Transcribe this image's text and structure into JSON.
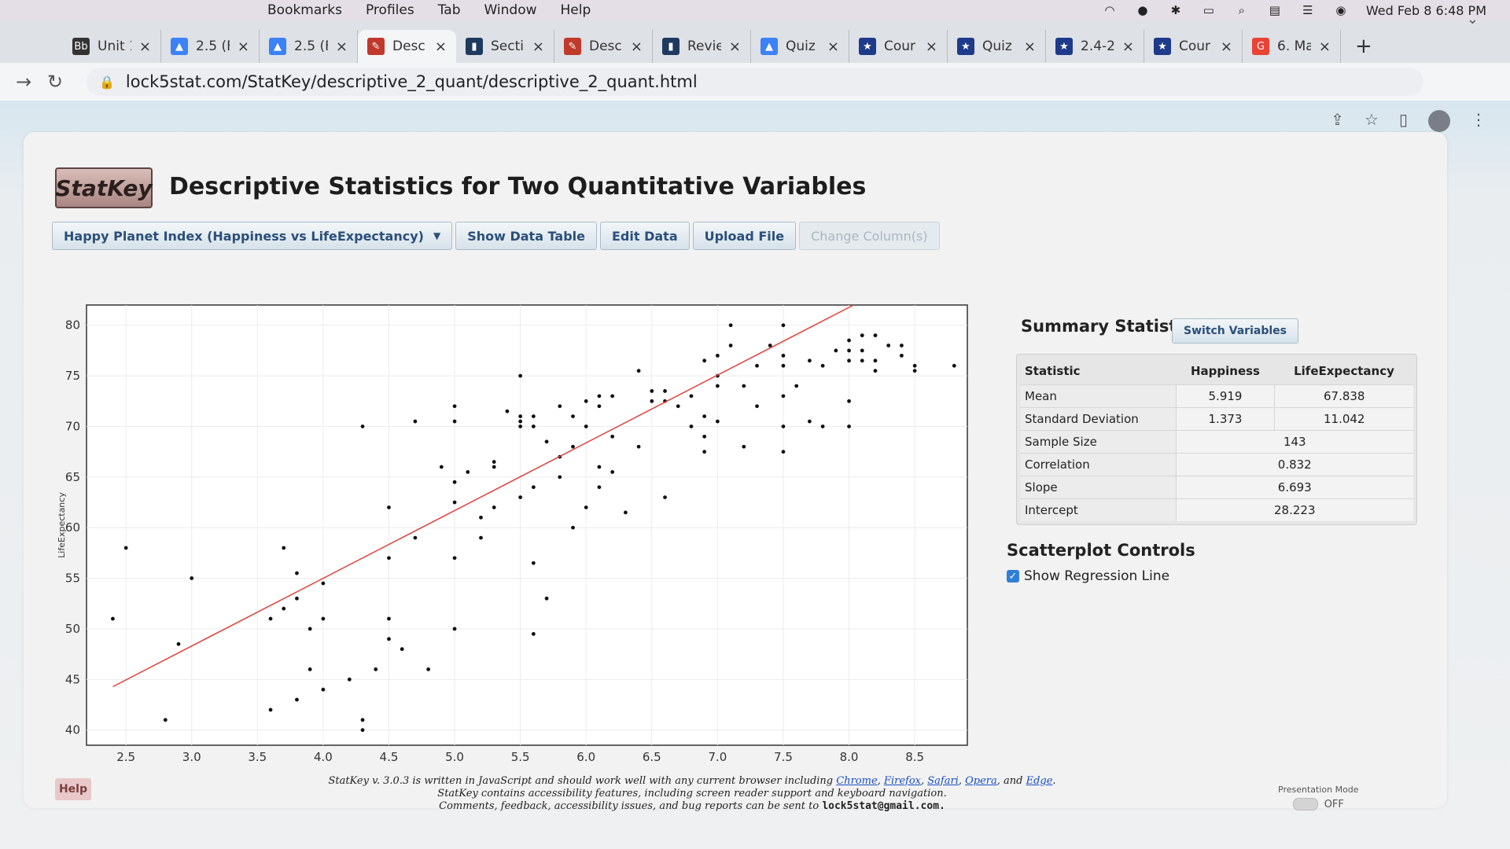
{
  "menubar": {
    "items": [
      "Bookmarks",
      "Profiles",
      "Tab",
      "Window",
      "Help"
    ],
    "clock": "Wed Feb 8  6:48 PM"
  },
  "tabs": [
    {
      "label": "Unit 1",
      "icon": "book-icon",
      "color": "#333333"
    },
    {
      "label": "2.5 (F",
      "icon": "drive-icon",
      "color": "#3b82f6"
    },
    {
      "label": "2.5 (F",
      "icon": "drive-icon",
      "color": "#3b82f6"
    },
    {
      "label": "Desc",
      "icon": "statkey-icon",
      "color": "#c0392b",
      "active": true
    },
    {
      "label": "Secti",
      "icon": "bookmark-icon",
      "color": "#1e3a5f"
    },
    {
      "label": "Desc",
      "icon": "statkey-icon",
      "color": "#c0392b"
    },
    {
      "label": "Revie",
      "icon": "bookmark-icon",
      "color": "#1e3a5f"
    },
    {
      "label": "Quiz",
      "icon": "drive-icon",
      "color": "#3b82f6"
    },
    {
      "label": "Cour",
      "icon": "shield-icon",
      "color": "#1e3a8a"
    },
    {
      "label": "Quiz",
      "icon": "shield-icon",
      "color": "#1e3a8a"
    },
    {
      "label": "2.4-2",
      "icon": "shield-icon",
      "color": "#1e3a8a"
    },
    {
      "label": "Cour",
      "icon": "shield-icon",
      "color": "#1e3a8a"
    },
    {
      "label": "6. Ma",
      "icon": "google-icon",
      "color": "#ea4335"
    }
  ],
  "address": {
    "url": "lock5stat.com/StatKey/descriptive_2_quant/descriptive_2_quant.html"
  },
  "page": {
    "logo": "StatKey",
    "title": "Descriptive Statistics for Two Quantitative Variables",
    "dataset": "Happy Planet Index (Happiness vs LifeExpectancy)",
    "buttons": {
      "show_table": "Show Data Table",
      "edit": "Edit Data",
      "upload": "Upload File",
      "change_columns": "Change Column(s)"
    }
  },
  "summary": {
    "title": "Summary Statistics",
    "switch_label": "Switch Variables",
    "headers": [
      "Statistic",
      "Happiness",
      "LifeExpectancy"
    ],
    "rows": [
      {
        "label": "Mean",
        "a": "5.919",
        "b": "67.838"
      },
      {
        "label": "Standard Deviation",
        "a": "1.373",
        "b": "11.042"
      }
    ],
    "single_rows": [
      {
        "label": "Sample Size",
        "value": "143"
      },
      {
        "label": "Correlation",
        "value": "0.832"
      },
      {
        "label": "Slope",
        "value": "6.693"
      },
      {
        "label": "Intercept",
        "value": "28.223"
      }
    ]
  },
  "controls": {
    "title": "Scatterplot Controls",
    "regression_label": "Show Regression Line",
    "regression_on": true
  },
  "footer": {
    "help": "Help",
    "line1_prefix": "StatKey v. 3.0.3 is written in JavaScript and should work well with any current browser including ",
    "browsers": [
      "Chrome",
      "Firefox",
      "Safari",
      "Opera",
      "Edge"
    ],
    "line2": "StatKey contains accessibility features, including screen reader support and keyboard navigation.",
    "line3_prefix": "Comments, feedback, accessibility issues, and bug reports can be sent to ",
    "email": "lock5stat@gmail.com.",
    "presentation_label": "Presentation Mode",
    "presentation_state": "OFF"
  },
  "chart_data": {
    "type": "scatter",
    "xlabel": "Happiness",
    "ylabel": "LifeExpectancy",
    "xlim": [
      2.2,
      8.9
    ],
    "ylim": [
      38.5,
      82
    ],
    "xticks": [
      2.5,
      3.0,
      3.5,
      4.0,
      4.5,
      5.0,
      5.5,
      6.0,
      6.5,
      7.0,
      7.5,
      8.0,
      8.5
    ],
    "yticks": [
      40,
      45,
      50,
      55,
      60,
      65,
      70,
      75,
      80
    ],
    "regression": {
      "slope": 6.693,
      "intercept": 28.223,
      "color": "#e0403a"
    },
    "points": [
      [
        2.4,
        51
      ],
      [
        2.5,
        58
      ],
      [
        2.8,
        41
      ],
      [
        2.9,
        48.5
      ],
      [
        3.0,
        55
      ],
      [
        3.6,
        42
      ],
      [
        3.6,
        51
      ],
      [
        3.7,
        52
      ],
      [
        3.7,
        58
      ],
      [
        3.8,
        53
      ],
      [
        3.8,
        55.5
      ],
      [
        3.8,
        43
      ],
      [
        3.9,
        50
      ],
      [
        3.9,
        46
      ],
      [
        4.0,
        54.5
      ],
      [
        4.0,
        51
      ],
      [
        4.0,
        44
      ],
      [
        4.2,
        45
      ],
      [
        4.3,
        70
      ],
      [
        4.3,
        41
      ],
      [
        4.3,
        40
      ],
      [
        4.4,
        46
      ],
      [
        4.5,
        62
      ],
      [
        4.5,
        57
      ],
      [
        4.5,
        51
      ],
      [
        4.5,
        49
      ],
      [
        4.6,
        48
      ],
      [
        4.7,
        70.5
      ],
      [
        4.7,
        59
      ],
      [
        4.8,
        46
      ],
      [
        5.0,
        64.5
      ],
      [
        5.0,
        72
      ],
      [
        5.0,
        70.5
      ],
      [
        5.0,
        62.5
      ],
      [
        5.0,
        50
      ],
      [
        5.0,
        57
      ],
      [
        5.1,
        65.5
      ],
      [
        5.2,
        61
      ],
      [
        5.2,
        59
      ],
      [
        5.3,
        66
      ],
      [
        5.3,
        62
      ],
      [
        5.4,
        71.5
      ],
      [
        5.5,
        75
      ],
      [
        5.5,
        71
      ],
      [
        5.5,
        70
      ],
      [
        5.5,
        63
      ],
      [
        5.6,
        71
      ],
      [
        5.6,
        70
      ],
      [
        5.6,
        64
      ],
      [
        5.6,
        56.5
      ],
      [
        5.6,
        49.5
      ],
      [
        5.7,
        68.5
      ],
      [
        5.7,
        53
      ],
      [
        5.8,
        72
      ],
      [
        5.8,
        67
      ],
      [
        5.8,
        65
      ],
      [
        5.9,
        71
      ],
      [
        5.9,
        68
      ],
      [
        5.9,
        60
      ],
      [
        6.0,
        72.5
      ],
      [
        6.0,
        70
      ],
      [
        6.0,
        62
      ],
      [
        6.1,
        73
      ],
      [
        6.1,
        72
      ],
      [
        6.1,
        66
      ],
      [
        6.1,
        64
      ],
      [
        6.2,
        73
      ],
      [
        6.2,
        65.5
      ],
      [
        6.3,
        61.5
      ],
      [
        6.4,
        68
      ],
      [
        6.4,
        75.5
      ],
      [
        6.5,
        72.5
      ],
      [
        6.5,
        73.5
      ],
      [
        6.6,
        73.5
      ],
      [
        6.6,
        72.5
      ],
      [
        6.6,
        63
      ],
      [
        6.7,
        72
      ],
      [
        6.8,
        73
      ],
      [
        6.8,
        70
      ],
      [
        6.9,
        71
      ],
      [
        6.9,
        69
      ],
      [
        6.9,
        67.5
      ],
      [
        7.0,
        77
      ],
      [
        7.0,
        75
      ],
      [
        7.0,
        74
      ],
      [
        7.0,
        70.5
      ],
      [
        7.1,
        78
      ],
      [
        7.1,
        80
      ],
      [
        7.2,
        74
      ],
      [
        7.2,
        68
      ],
      [
        7.3,
        76
      ],
      [
        7.4,
        78
      ],
      [
        7.5,
        77
      ],
      [
        7.5,
        80
      ],
      [
        7.5,
        76
      ],
      [
        7.5,
        73
      ],
      [
        7.5,
        70
      ],
      [
        7.5,
        67.5
      ],
      [
        7.7,
        76.5
      ],
      [
        7.7,
        70.5
      ],
      [
        7.8,
        76
      ],
      [
        7.9,
        77.5
      ],
      [
        8.0,
        77.5
      ],
      [
        8.0,
        78.5
      ],
      [
        8.0,
        76.5
      ],
      [
        8.0,
        72.5
      ],
      [
        8.0,
        70
      ],
      [
        8.1,
        77.5
      ],
      [
        8.1,
        79
      ],
      [
        8.1,
        76.5
      ],
      [
        8.2,
        79
      ],
      [
        8.2,
        76.5
      ],
      [
        8.2,
        75.5
      ],
      [
        8.3,
        78
      ],
      [
        8.4,
        78
      ],
      [
        8.4,
        77
      ],
      [
        8.5,
        76
      ],
      [
        8.5,
        75.5
      ],
      [
        8.8,
        76
      ],
      [
        7.6,
        74
      ],
      [
        7.3,
        72
      ],
      [
        6.9,
        76.5
      ],
      [
        6.2,
        69
      ],
      [
        5.5,
        70.5
      ],
      [
        4.9,
        66
      ],
      [
        5.3,
        66.5
      ],
      [
        7.8,
        70
      ]
    ]
  }
}
